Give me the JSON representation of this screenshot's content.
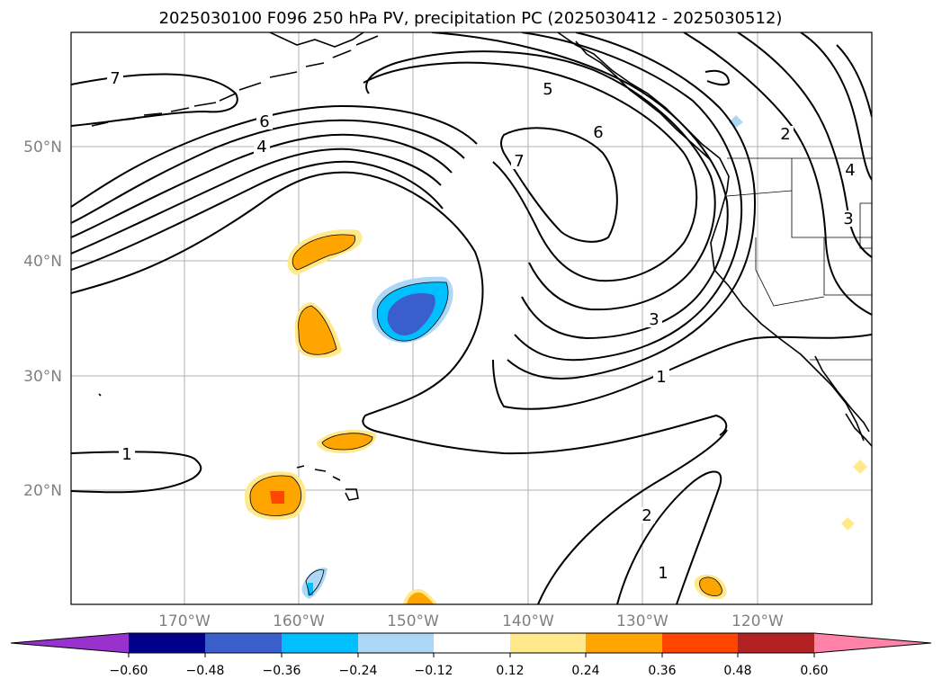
{
  "title": "2025030100 F096 250 hPa PV, precipitation PC (2025030412 - 2025030512)",
  "lat_labels": [
    "50°N",
    "40°N",
    "30°N",
    "20°N"
  ],
  "lon_labels": [
    "170°W",
    "160°W",
    "150°W",
    "140°W",
    "130°W",
    "120°W"
  ],
  "contour_labels": {
    "c7_west": "7",
    "c6_west": "6",
    "c4_west": "4",
    "c1_west": "1",
    "c5_north": "5",
    "c6_north": "6",
    "c7_center": "7",
    "c3_center": "3",
    "c1_center": "1",
    "c2_south": "2",
    "c1_south": "1",
    "c2_east": "2",
    "c4_east": "4",
    "c3_east": "3"
  },
  "colorbar": {
    "tick_labels": [
      "−0.60",
      "−0.48",
      "−0.36",
      "−0.24",
      "−0.12",
      "0.12",
      "0.24",
      "0.36",
      "0.48",
      "0.60"
    ],
    "colors": [
      "#9932cc",
      "#00008b",
      "#3a5fcd",
      "#00bfff",
      "#add8f5",
      "#ffffff",
      "#ffe98a",
      "#ffa500",
      "#ff4500",
      "#b22222",
      "#ff82a8"
    ]
  },
  "precip_colors": {
    "light_pos": "#ffe98a",
    "mid_pos": "#ffa500",
    "high_pos": "#ff4500",
    "light_neg": "#add8f5",
    "mid_neg": "#00bfff",
    "high_neg": "#3a5fcd"
  }
}
